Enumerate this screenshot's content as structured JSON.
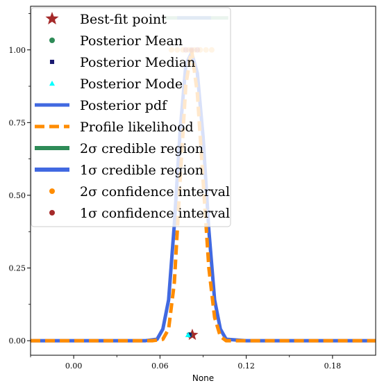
{
  "chart_data": {
    "type": "line",
    "title": "",
    "xlabel": "None",
    "ylabel": "",
    "xlim": [
      -0.03,
      0.21
    ],
    "ylim": [
      -0.05,
      1.15
    ],
    "x_ticks": [
      {
        "value": 0.0,
        "label": "0.00"
      },
      {
        "value": 0.06,
        "label": "0.06"
      },
      {
        "value": 0.12,
        "label": "0.12"
      },
      {
        "value": 0.18,
        "label": "0.18"
      }
    ],
    "y_ticks": [
      {
        "value": 0.0,
        "label": "0.00"
      },
      {
        "value": 0.25,
        "label": "0.25"
      },
      {
        "value": 0.5,
        "label": "0.50"
      },
      {
        "value": 0.75,
        "label": "0.75"
      },
      {
        "value": 1.0,
        "label": "1.00"
      }
    ],
    "grid": false,
    "legend_placement": "top-left",
    "series": [
      {
        "name": "Posterior pdf",
        "kind": "line",
        "color": "#4169e1",
        "x": [
          -0.03,
          0.0,
          0.03,
          0.05,
          0.058,
          0.062,
          0.066,
          0.07,
          0.074,
          0.078,
          0.082,
          0.086,
          0.09,
          0.094,
          0.098,
          0.102,
          0.106,
          0.12,
          0.15,
          0.18,
          0.21
        ],
        "y": [
          0.0,
          0.0,
          0.0,
          0.0,
          0.005,
          0.04,
          0.14,
          0.4,
          0.72,
          0.95,
          0.99,
          0.92,
          0.7,
          0.38,
          0.14,
          0.04,
          0.005,
          0.0,
          0.0,
          0.0,
          0.0
        ]
      },
      {
        "name": "Profile likelihood",
        "kind": "line",
        "color": "#ff8c00",
        "x": [
          -0.03,
          0.0,
          0.03,
          0.055,
          0.062,
          0.066,
          0.07,
          0.074,
          0.078,
          0.082,
          0.086,
          0.09,
          0.094,
          0.098,
          0.102,
          0.106,
          0.12,
          0.15,
          0.18,
          0.21
        ],
        "y": [
          0.0,
          0.0,
          0.0,
          0.0,
          0.005,
          0.04,
          0.2,
          0.55,
          0.88,
          1.0,
          0.85,
          0.55,
          0.25,
          0.08,
          0.015,
          0.0,
          0.0,
          0.0,
          0.0,
          0.0
        ]
      }
    ],
    "credible_regions": [
      {
        "name": "2σ credible region",
        "color": "#2e8b57",
        "x_range": [
          0.0635,
          0.1075
        ],
        "y": 1.11
      },
      {
        "name": "1σ credible region",
        "color": "#4169e1",
        "x_range": [
          0.072,
          0.0955
        ],
        "y": 1.11
      }
    ],
    "confidence_intervals": [
      {
        "name": "2σ confidence interval",
        "color": "#ff8c00",
        "x": [
          0.068,
          0.072,
          0.076,
          0.08,
          0.084,
          0.088,
          0.092,
          0.096
        ],
        "y": 1.0
      },
      {
        "name": "1σ confidence interval",
        "color": "#a52a2a",
        "x": [
          0.078,
          0.082,
          0.086
        ],
        "y": 1.0
      }
    ],
    "points": [
      {
        "name": "Best-fit point",
        "marker": "star",
        "color": "#a52a2a",
        "x": 0.0825,
        "y": 0.02
      },
      {
        "name": "Posterior Mean",
        "marker": "circle",
        "color": "#2e8b57",
        "x": 0.0805,
        "y": 0.02
      },
      {
        "name": "Posterior Median",
        "marker": "square",
        "color": "#191970",
        "x": 0.0805,
        "y": 0.02
      },
      {
        "name": "Posterior Mode",
        "marker": "triangle",
        "color": "#00ffff",
        "x": 0.0795,
        "y": 0.02
      }
    ],
    "legend": [
      {
        "label": "Best-fit point",
        "marker": "star",
        "color": "#a52a2a"
      },
      {
        "label": "Posterior Mean",
        "marker": "circle",
        "color": "#2e8b57"
      },
      {
        "label": "Posterior Median",
        "marker": "square",
        "color": "#191970"
      },
      {
        "label": "Posterior Mode",
        "marker": "triangle",
        "color": "#00ffff"
      },
      {
        "label": "Posterior pdf",
        "marker": "line",
        "color": "#4169e1"
      },
      {
        "label": "Profile likelihood",
        "marker": "dashed-line",
        "color": "#ff8c00"
      },
      {
        "label": "2σ credible region",
        "marker": "thick-line",
        "color": "#2e8b57"
      },
      {
        "label": "1σ credible region",
        "marker": "thick-line",
        "color": "#4169e1"
      },
      {
        "label": "2σ confidence interval",
        "marker": "circle",
        "color": "#ff8c00"
      },
      {
        "label": "1σ confidence interval",
        "marker": "circle",
        "color": "#a52a2a"
      }
    ]
  }
}
